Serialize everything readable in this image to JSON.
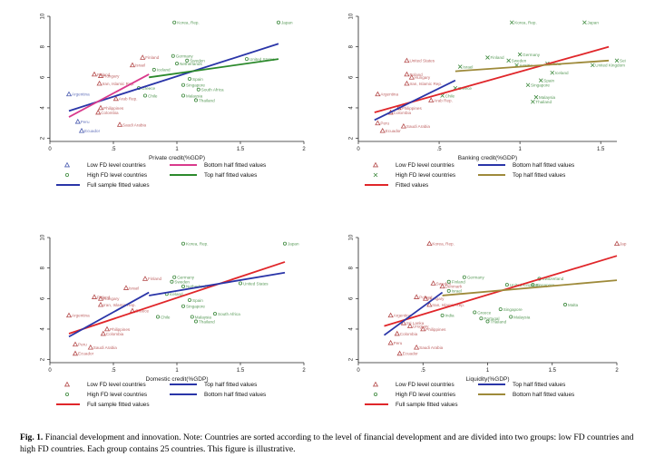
{
  "colors": {
    "low_marker": "#b44a4a",
    "high_marker": "#3e8a3e",
    "tri_marker": "#4a5bb0",
    "red": "#e0262a",
    "blue": "#2a35a8",
    "green": "#2c8a2c",
    "magenta": "#d93a8c",
    "olive": "#9e8a3a",
    "axis": "#222222",
    "label": "#6a7fa8"
  },
  "chart_data": [
    {
      "id": "p1",
      "type": "scatter",
      "xlabel": "Private credit(%GDP)",
      "ylabel": "",
      "xlim": [
        0,
        2
      ],
      "ylim": [
        1.8,
        10
      ],
      "xticks": [
        "0",
        ".5",
        "1",
        "1.5",
        "2"
      ],
      "yticks": [
        "2",
        "4",
        "6",
        "8",
        "10"
      ],
      "points": [
        {
          "label": "Korea, Rep.",
          "x": 0.98,
          "y": 9.6,
          "g": "high"
        },
        {
          "label": "Japan",
          "x": 1.8,
          "y": 9.6,
          "g": "high"
        },
        {
          "label": "Finland",
          "x": 0.73,
          "y": 7.3,
          "g": "low"
        },
        {
          "label": "Germany",
          "x": 0.97,
          "y": 7.4,
          "g": "high"
        },
        {
          "label": "Sweden",
          "x": 1.08,
          "y": 7.1,
          "g": "high"
        },
        {
          "label": "United States",
          "x": 1.55,
          "y": 7.2,
          "g": "high"
        },
        {
          "label": "Israel",
          "x": 0.65,
          "y": 6.8,
          "g": "low"
        },
        {
          "label": "Netherlands",
          "x": 1.0,
          "y": 6.9,
          "g": "high"
        },
        {
          "label": "Poland",
          "x": 0.35,
          "y": 6.2,
          "g": "low"
        },
        {
          "label": "Hungary",
          "x": 0.4,
          "y": 6.1,
          "g": "low"
        },
        {
          "label": "Iceland",
          "x": 0.82,
          "y": 6.5,
          "g": "high"
        },
        {
          "label": "Spain",
          "x": 1.1,
          "y": 5.9,
          "g": "high"
        },
        {
          "label": "Iran, Islamic Rep.",
          "x": 0.39,
          "y": 5.6,
          "g": "low"
        },
        {
          "label": "Greece",
          "x": 0.7,
          "y": 5.3,
          "g": "high"
        },
        {
          "label": "Singapore",
          "x": 1.05,
          "y": 5.5,
          "g": "high"
        },
        {
          "label": "South Africa",
          "x": 1.17,
          "y": 5.2,
          "g": "high"
        },
        {
          "label": "Argentina",
          "x": 0.15,
          "y": 4.9,
          "g": "tri"
        },
        {
          "label": "Chile",
          "x": 0.75,
          "y": 4.8,
          "g": "high"
        },
        {
          "label": "Malaysia",
          "x": 1.05,
          "y": 4.8,
          "g": "high"
        },
        {
          "label": "Thailand",
          "x": 1.15,
          "y": 4.5,
          "g": "high"
        },
        {
          "label": "Arab Rep.",
          "x": 0.52,
          "y": 4.6,
          "g": "low"
        },
        {
          "label": "Philippines",
          "x": 0.4,
          "y": 4.0,
          "g": "low"
        },
        {
          "label": "Colombia",
          "x": 0.38,
          "y": 3.7,
          "g": "low"
        },
        {
          "label": "Peru",
          "x": 0.22,
          "y": 3.1,
          "g": "tri"
        },
        {
          "label": "Saudi Arabia",
          "x": 0.55,
          "y": 2.9,
          "g": "low"
        },
        {
          "label": "Ecuador",
          "x": 0.25,
          "y": 2.5,
          "g": "tri"
        }
      ],
      "lines": [
        {
          "name": "Full sample fitted values",
          "color": "blue",
          "x": [
            0.15,
            1.8
          ],
          "y": [
            3.8,
            8.2
          ]
        },
        {
          "name": "Bottom half fitted values",
          "color": "magenta",
          "x": [
            0.15,
            0.78
          ],
          "y": [
            3.4,
            6.2
          ]
        },
        {
          "name": "Top half fitted values",
          "color": "green",
          "x": [
            0.78,
            1.8
          ],
          "y": [
            6.0,
            7.2
          ]
        }
      ],
      "legend": [
        {
          "marker": "tri",
          "text": "Low FD level countries"
        },
        {
          "line": "magenta",
          "text": "Bottom half fitted values"
        },
        {
          "marker": "circle",
          "text": "High FD level countries"
        },
        {
          "line": "green",
          "text": "Top half fitted values"
        },
        {
          "line": "blue",
          "text": "Full sample fitted values"
        }
      ]
    },
    {
      "id": "p2",
      "type": "scatter",
      "xlabel": "Banking credit(%GDP)",
      "ylabel": "",
      "xlim": [
        0,
        1.6
      ],
      "ylim": [
        1.8,
        10
      ],
      "xticks": [
        "0",
        ".5",
        "1",
        "1.5"
      ],
      "yticks": [
        "2",
        "4",
        "6",
        "8",
        "10"
      ],
      "points": [
        {
          "label": "Korea, Rep.",
          "x": 0.95,
          "y": 9.6,
          "g": "high"
        },
        {
          "label": "Japan",
          "x": 1.4,
          "y": 9.6,
          "g": "high"
        },
        {
          "label": "Finland",
          "x": 0.8,
          "y": 7.3,
          "g": "high"
        },
        {
          "label": "Germany",
          "x": 1.0,
          "y": 7.5,
          "g": "high"
        },
        {
          "label": "Sweden",
          "x": 0.93,
          "y": 7.1,
          "g": "high"
        },
        {
          "label": "United States",
          "x": 0.3,
          "y": 7.1,
          "g": "low"
        },
        {
          "label": "Israel",
          "x": 0.63,
          "y": 6.7,
          "g": "high"
        },
        {
          "label": "Austria",
          "x": 0.98,
          "y": 6.8,
          "g": "high"
        },
        {
          "label": "China",
          "x": 1.17,
          "y": 6.9,
          "g": "high"
        },
        {
          "label": "United Kingdom",
          "x": 1.45,
          "y": 6.8,
          "g": "high"
        },
        {
          "label": "Sei",
          "x": 1.6,
          "y": 7.1,
          "g": "high"
        },
        {
          "label": "Poland",
          "x": 0.3,
          "y": 6.2,
          "g": "low"
        },
        {
          "label": "Hungary",
          "x": 0.33,
          "y": 6.0,
          "g": "low"
        },
        {
          "label": "Iceland",
          "x": 1.2,
          "y": 6.3,
          "g": "high"
        },
        {
          "label": "Spain",
          "x": 1.13,
          "y": 5.8,
          "g": "high"
        },
        {
          "label": "Singapore",
          "x": 1.05,
          "y": 5.5,
          "g": "high"
        },
        {
          "label": "Iran, Islamic Rep.",
          "x": 0.3,
          "y": 5.6,
          "g": "low"
        },
        {
          "label": "Greece",
          "x": 0.6,
          "y": 5.3,
          "g": "high"
        },
        {
          "label": "Argentina",
          "x": 0.12,
          "y": 4.9,
          "g": "low"
        },
        {
          "label": "Chile",
          "x": 0.52,
          "y": 4.8,
          "g": "high"
        },
        {
          "label": "Malaysia",
          "x": 1.1,
          "y": 4.7,
          "g": "high"
        },
        {
          "label": "Thailand",
          "x": 1.08,
          "y": 4.4,
          "g": "high"
        },
        {
          "label": "Arab Rep.",
          "x": 0.45,
          "y": 4.5,
          "g": "low"
        },
        {
          "label": "Philippines",
          "x": 0.25,
          "y": 4.0,
          "g": "low"
        },
        {
          "label": "Colombia",
          "x": 0.2,
          "y": 3.7,
          "g": "low"
        },
        {
          "label": "Peru",
          "x": 0.12,
          "y": 3.0,
          "g": "low"
        },
        {
          "label": "Saudi Arabia",
          "x": 0.28,
          "y": 2.8,
          "g": "low"
        },
        {
          "label": "Ecuador",
          "x": 0.15,
          "y": 2.5,
          "g": "low"
        }
      ],
      "lines": [
        {
          "name": "Fitted values",
          "color": "red",
          "x": [
            0.1,
            1.55
          ],
          "y": [
            3.7,
            8.0
          ]
        },
        {
          "name": "Bottom half fitted values",
          "color": "blue",
          "x": [
            0.1,
            0.6
          ],
          "y": [
            3.2,
            5.8
          ]
        },
        {
          "name": "Top half fitted values",
          "color": "olive",
          "x": [
            0.6,
            1.55
          ],
          "y": [
            6.4,
            7.1
          ]
        }
      ],
      "legend": [
        {
          "marker": "tri-red",
          "text": "Low FD level countries"
        },
        {
          "line": "blue",
          "text": "Bottom half fitted values"
        },
        {
          "marker": "x",
          "text": "High FD level countries"
        },
        {
          "line": "olive",
          "text": "Top half fitted values"
        },
        {
          "line": "red",
          "text": "Fitted values"
        }
      ]
    },
    {
      "id": "p3",
      "type": "scatter",
      "xlabel": "Domestic credit(%GDP)",
      "ylabel": "",
      "xlim": [
        0,
        2
      ],
      "ylim": [
        1.8,
        10
      ],
      "xticks": [
        "0",
        ".5",
        "1",
        "1.5",
        "2"
      ],
      "yticks": [
        "2",
        "4",
        "6",
        "8",
        "10"
      ],
      "points": [
        {
          "label": "Korea, Rep.",
          "x": 1.05,
          "y": 9.6,
          "g": "high"
        },
        {
          "label": "Japan",
          "x": 1.85,
          "y": 9.6,
          "g": "high"
        },
        {
          "label": "Finland",
          "x": 0.75,
          "y": 7.3,
          "g": "low"
        },
        {
          "label": "Germany",
          "x": 0.98,
          "y": 7.4,
          "g": "high"
        },
        {
          "label": "Sweden",
          "x": 0.96,
          "y": 7.1,
          "g": "high"
        },
        {
          "label": "United States",
          "x": 1.5,
          "y": 7.0,
          "g": "high"
        },
        {
          "label": "Israel",
          "x": 0.6,
          "y": 6.7,
          "g": "low"
        },
        {
          "label": "Netherlands",
          "x": 1.05,
          "y": 6.8,
          "g": "high"
        },
        {
          "label": "Poland",
          "x": 0.35,
          "y": 6.1,
          "g": "low"
        },
        {
          "label": "Hungary",
          "x": 0.4,
          "y": 6.0,
          "g": "low"
        },
        {
          "label": "Iceland",
          "x": 0.92,
          "y": 6.3,
          "g": "high"
        },
        {
          "label": "Spain",
          "x": 1.1,
          "y": 5.9,
          "g": "high"
        },
        {
          "label": "Singapore",
          "x": 1.05,
          "y": 5.5,
          "g": "high"
        },
        {
          "label": "Iran, Islamic Rep.",
          "x": 0.4,
          "y": 5.6,
          "g": "low"
        },
        {
          "label": "Greece",
          "x": 0.65,
          "y": 5.2,
          "g": "low"
        },
        {
          "label": "South Africa",
          "x": 1.3,
          "y": 5.0,
          "g": "high"
        },
        {
          "label": "Argentina",
          "x": 0.15,
          "y": 4.9,
          "g": "low"
        },
        {
          "label": "Chile",
          "x": 0.85,
          "y": 4.8,
          "g": "high"
        },
        {
          "label": "Malaysia",
          "x": 1.12,
          "y": 4.8,
          "g": "high"
        },
        {
          "label": "Thailand",
          "x": 1.15,
          "y": 4.5,
          "g": "high"
        },
        {
          "label": "Philippines",
          "x": 0.45,
          "y": 4.0,
          "g": "low"
        },
        {
          "label": "Colombia",
          "x": 0.42,
          "y": 3.7,
          "g": "low"
        },
        {
          "label": "Peru",
          "x": 0.2,
          "y": 3.0,
          "g": "low"
        },
        {
          "label": "Saudi Arabia",
          "x": 0.32,
          "y": 2.8,
          "g": "low"
        },
        {
          "label": "Ecuador",
          "x": 0.2,
          "y": 2.4,
          "g": "low"
        }
      ],
      "lines": [
        {
          "name": "Full sample fitted values",
          "color": "red",
          "x": [
            0.15,
            1.85
          ],
          "y": [
            3.7,
            8.4
          ]
        },
        {
          "name": "Top half fitted values",
          "color": "blue",
          "x": [
            0.15,
            0.78
          ],
          "y": [
            3.5,
            6.4
          ]
        },
        {
          "name": "Bottom half fitted values",
          "color": "blue2",
          "x": [
            0.78,
            1.85
          ],
          "y": [
            6.2,
            7.7
          ]
        }
      ],
      "legend": [
        {
          "marker": "tri-red",
          "text": "Low FD level countries"
        },
        {
          "line": "blue",
          "text": "Top half fitted values"
        },
        {
          "marker": "circle",
          "text": "High FD level countries"
        },
        {
          "line": "blue",
          "text": "Bottom half fitted values"
        },
        {
          "line": "red",
          "text": "Full sample fitted values"
        }
      ]
    },
    {
      "id": "p4",
      "type": "scatter",
      "xlabel": "Liquidity(%GDP)",
      "ylabel": "",
      "xlim": [
        0,
        2
      ],
      "ylim": [
        1.8,
        10
      ],
      "xticks": [
        "0",
        ".5",
        "1",
        "1.5",
        "2"
      ],
      "yticks": [
        "2",
        "4",
        "6",
        "8",
        "10"
      ],
      "points": [
        {
          "label": "Korea, Rep.",
          "x": 0.55,
          "y": 9.6,
          "g": "low"
        },
        {
          "label": "Jap",
          "x": 2.0,
          "y": 9.6,
          "g": "low"
        },
        {
          "label": "Germany",
          "x": 0.82,
          "y": 7.4,
          "g": "high"
        },
        {
          "label": "Sweden",
          "x": 0.58,
          "y": 7.0,
          "g": "low"
        },
        {
          "label": "Finland",
          "x": 0.7,
          "y": 7.1,
          "g": "high"
        },
        {
          "label": "Denmark",
          "x": 0.65,
          "y": 6.8,
          "g": "low"
        },
        {
          "label": "United Kingdom",
          "x": 1.15,
          "y": 6.9,
          "g": "high"
        },
        {
          "label": "Switzerland",
          "x": 1.4,
          "y": 7.3,
          "g": "high"
        },
        {
          "label": "Singapore",
          "x": 1.35,
          "y": 6.9,
          "g": "high"
        },
        {
          "label": "Israel",
          "x": 0.7,
          "y": 6.5,
          "g": "high"
        },
        {
          "label": "Poland",
          "x": 0.45,
          "y": 6.1,
          "g": "low"
        },
        {
          "label": "Hungary",
          "x": 0.52,
          "y": 6.0,
          "g": "low"
        },
        {
          "label": "Iran, Islamic Rep.",
          "x": 0.55,
          "y": 5.6,
          "g": "low"
        },
        {
          "label": "Singapore",
          "x": 1.1,
          "y": 5.3,
          "g": "high"
        },
        {
          "label": "Malta",
          "x": 1.6,
          "y": 5.6,
          "g": "high"
        },
        {
          "label": "Greece",
          "x": 0.9,
          "y": 5.1,
          "g": "high"
        },
        {
          "label": "India",
          "x": 0.65,
          "y": 4.9,
          "g": "high"
        },
        {
          "label": "Portugal",
          "x": 0.95,
          "y": 4.7,
          "g": "high"
        },
        {
          "label": "Malaysia",
          "x": 1.18,
          "y": 4.8,
          "g": "high"
        },
        {
          "label": "Thailand",
          "x": 1.0,
          "y": 4.5,
          "g": "high"
        },
        {
          "label": "Argentina",
          "x": 0.25,
          "y": 4.9,
          "g": "low"
        },
        {
          "label": "Sri Lanka",
          "x": 0.35,
          "y": 4.4,
          "g": "low"
        },
        {
          "label": "Uruguay",
          "x": 0.4,
          "y": 4.2,
          "g": "low"
        },
        {
          "label": "Philippines",
          "x": 0.5,
          "y": 4.0,
          "g": "low"
        },
        {
          "label": "Colombia",
          "x": 0.3,
          "y": 3.7,
          "g": "low"
        },
        {
          "label": "Peru",
          "x": 0.25,
          "y": 3.1,
          "g": "low"
        },
        {
          "label": "Saudi Arabia",
          "x": 0.45,
          "y": 2.8,
          "g": "low"
        },
        {
          "label": "Ecuador",
          "x": 0.32,
          "y": 2.4,
          "g": "low"
        }
      ],
      "lines": [
        {
          "name": "Full sample fitted values",
          "color": "red",
          "x": [
            0.2,
            2.0
          ],
          "y": [
            4.2,
            8.8
          ]
        },
        {
          "name": "Top half fitted values",
          "color": "blue",
          "x": [
            0.2,
            0.65
          ],
          "y": [
            3.6,
            6.4
          ]
        },
        {
          "name": "Bottom half fitted values",
          "color": "olive",
          "x": [
            0.65,
            2.0
          ],
          "y": [
            6.2,
            7.2
          ]
        }
      ],
      "legend": [
        {
          "marker": "tri-red",
          "text": "Low FD level countries"
        },
        {
          "line": "blue",
          "text": "Top half fitted values"
        },
        {
          "marker": "circle",
          "text": "High FD level countries"
        },
        {
          "line": "olive",
          "text": "Bottom half fitted values"
        },
        {
          "line": "red",
          "text": "Full sample fitted values"
        }
      ]
    }
  ],
  "caption": {
    "label": "Fig. 1.",
    "text": "Financial development and innovation. Note: Countries are sorted according to the level of financial development and are divided into two groups: low FD countries and high FD countries. Each group contains 25 countries. This figure is illustrative."
  }
}
